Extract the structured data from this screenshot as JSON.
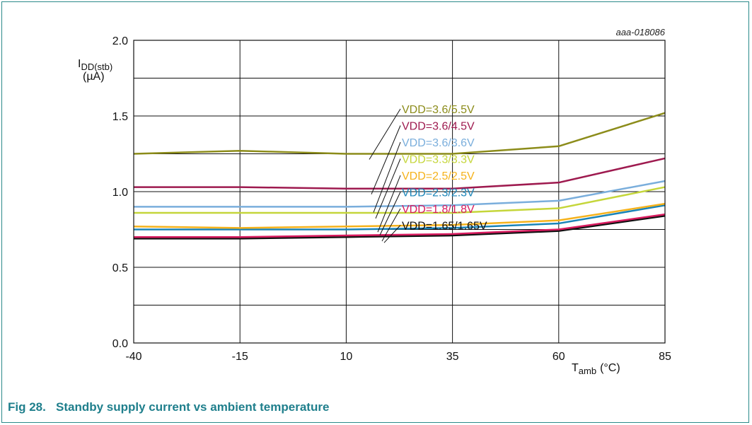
{
  "figure_id": "aaa-018086",
  "caption": "Fig 28.   Standby supply current vs ambient temperature",
  "chart_data": {
    "type": "line",
    "xlabel_main": "T",
    "xlabel_sub": "amb",
    "xlabel_unit": "(°C)",
    "ylabel_main": "I",
    "ylabel_sub": "DD(stb)",
    "ylabel_unit": "(µA)",
    "x": [
      -40,
      -15,
      10,
      35,
      60,
      85
    ],
    "x_tick_labels": [
      "-40",
      "-15",
      "10",
      "35",
      "60",
      "85"
    ],
    "xlim": [
      -40,
      85
    ],
    "ylim": [
      0,
      2.0
    ],
    "y_ticks": [
      0,
      0.5,
      1.0,
      1.5,
      2.0
    ],
    "y_tick_labels": [
      "0.0",
      "0.5",
      "1.0",
      "1.5",
      "2.0"
    ],
    "grid": true,
    "series": [
      {
        "name": "VDD=3.6/5.5V",
        "color": "#8c8c1a",
        "values": [
          1.25,
          1.27,
          1.25,
          1.25,
          1.3,
          1.52
        ]
      },
      {
        "name": "VDD=3.6/4.5V",
        "color": "#9e1a4f",
        "values": [
          1.03,
          1.03,
          1.02,
          1.02,
          1.06,
          1.22
        ]
      },
      {
        "name": "VDD=3.6/3.6V",
        "color": "#7aaedc",
        "values": [
          0.9,
          0.9,
          0.9,
          0.91,
          0.94,
          1.07
        ]
      },
      {
        "name": "VDD=3.3/3.3V",
        "color": "#c5d63a",
        "values": [
          0.86,
          0.86,
          0.86,
          0.86,
          0.89,
          1.03
        ]
      },
      {
        "name": "VDD=2.5/2.5V",
        "color": "#f5b21b",
        "values": [
          0.77,
          0.76,
          0.77,
          0.78,
          0.81,
          0.92
        ]
      },
      {
        "name": "VDD=2.3/2.3V",
        "color": "#1a84b8",
        "values": [
          0.75,
          0.75,
          0.75,
          0.76,
          0.79,
          0.91
        ]
      },
      {
        "name": "VDD=1.8/1.8V",
        "color": "#d81b5f",
        "values": [
          0.7,
          0.7,
          0.71,
          0.72,
          0.75,
          0.85
        ]
      },
      {
        "name": "VDD=1.65/1.65V",
        "color": "#111111",
        "values": [
          0.69,
          0.69,
          0.7,
          0.71,
          0.74,
          0.84
        ]
      }
    ]
  }
}
